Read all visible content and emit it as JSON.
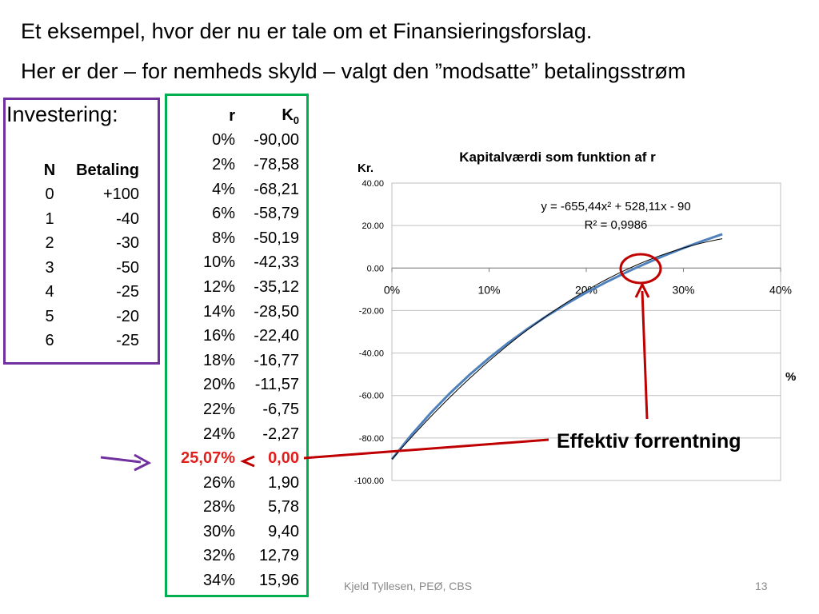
{
  "slide": {
    "line1": "Et eksempel, hvor der nu er tale om et Finansieringsforslag.",
    "line2": "Her er der – for nemheds skyld – valgt den ”modsatte” betalingsstrøm",
    "footer": "Kjeld Tyllesen, PEØ, CBS",
    "page_number": "13",
    "callout": "Effektiv forrentning"
  },
  "investment": {
    "title": "Investering:",
    "col_n": "N",
    "col_b": "Betaling",
    "rows": [
      {
        "n": "0",
        "b": "+100"
      },
      {
        "n": "1",
        "b": "-40"
      },
      {
        "n": "2",
        "b": "-30"
      },
      {
        "n": "3",
        "b": "-50"
      },
      {
        "n": "4",
        "b": "-25"
      },
      {
        "n": "5",
        "b": "-20"
      },
      {
        "n": "6",
        "b": "-25"
      }
    ]
  },
  "rk_table": {
    "col_r": "r",
    "col_k": "K",
    "col_k_sub": "0",
    "rows": [
      {
        "r": "0%",
        "k": "-90,00"
      },
      {
        "r": "2%",
        "k": "-78,58"
      },
      {
        "r": "4%",
        "k": "-68,21"
      },
      {
        "r": "6%",
        "k": "-58,79"
      },
      {
        "r": "8%",
        "k": "-50,19"
      },
      {
        "r": "10%",
        "k": "-42,33"
      },
      {
        "r": "12%",
        "k": "-35,12"
      },
      {
        "r": "14%",
        "k": "-28,50"
      },
      {
        "r": "16%",
        "k": "-22,40"
      },
      {
        "r": "18%",
        "k": "-16,77"
      },
      {
        "r": "20%",
        "k": "-11,57"
      },
      {
        "r": "22%",
        "k": "-6,75"
      },
      {
        "r": "24%",
        "k": "-2,27"
      },
      {
        "r": "25,07%",
        "k": "0,00",
        "highlight": true
      },
      {
        "r": "26%",
        "k": "1,90"
      },
      {
        "r": "28%",
        "k": "5,78"
      },
      {
        "r": "30%",
        "k": "9,40"
      },
      {
        "r": "32%",
        "k": "12,79"
      },
      {
        "r": "34%",
        "k": "15,96"
      }
    ]
  },
  "chart_data": {
    "type": "line",
    "title": "Kapitalværdi som funktion af r",
    "ylabel": "Kr.",
    "xlabel": "%",
    "xlim": [
      0,
      0.4
    ],
    "ylim": [
      -100,
      40
    ],
    "x_ticks": [
      0,
      0.1,
      0.2,
      0.3,
      0.4
    ],
    "x_tick_labels": [
      "0%",
      "10%",
      "20%",
      "30%",
      "40%"
    ],
    "y_ticks": [
      40,
      20,
      0,
      -20,
      -40,
      -60,
      -80,
      -100
    ],
    "y_tick_labels": [
      "40.00",
      "20.00",
      "0.00",
      "-20.00",
      "-40.00",
      "-60.00",
      "-80.00",
      "-100.00"
    ],
    "series": [
      {
        "color": "#4f81bd",
        "x": [
          0,
          0.02,
          0.04,
          0.06,
          0.08,
          0.1,
          0.12,
          0.14,
          0.16,
          0.18,
          0.2,
          0.22,
          0.24,
          0.2507,
          0.26,
          0.28,
          0.3,
          0.32,
          0.34
        ],
        "y": [
          -90.0,
          -78.58,
          -68.21,
          -58.79,
          -50.19,
          -42.33,
          -35.12,
          -28.5,
          -22.4,
          -16.77,
          -11.57,
          -6.75,
          -2.27,
          0.0,
          1.9,
          5.78,
          9.4,
          12.79,
          15.96
        ]
      }
    ],
    "trendline": {
      "type": "polynomial",
      "coefficients": [
        -655.44,
        528.11,
        -90
      ],
      "equation_label": "y = -655,44x² + 528,11x - 90",
      "r2_label": "R² = 0,9986",
      "color": "#000000"
    },
    "colors": {
      "investment_box": "#7030a0",
      "table_box": "#00b050",
      "arrow_red": "#c00000",
      "arrow_purple": "#7030a0",
      "highlight_text": "#e0201c"
    }
  }
}
